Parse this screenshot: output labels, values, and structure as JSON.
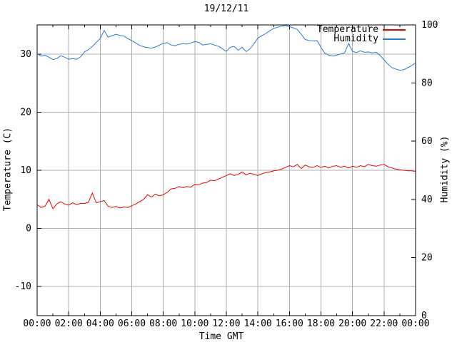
{
  "colors": {
    "background": "#ffffff",
    "axis": "#000000",
    "grid": "#adadad",
    "temperature": "#ee0000",
    "humidity": "#2878d8"
  },
  "chart_data": {
    "type": "line",
    "title": "19/12/11",
    "xlabel": "Time GMT",
    "grid": true,
    "legend_position": "top-right-inside",
    "x_axis": {
      "unit": "time GMT",
      "range_minutes": [
        0,
        1440
      ],
      "major_tick_minutes": 120,
      "minor_tick_minutes": 60,
      "tick_labels": [
        "00:00",
        "02:00",
        "04:00",
        "06:00",
        "08:00",
        "10:00",
        "12:00",
        "14:00",
        "16:00",
        "18:00",
        "20:00",
        "22:00",
        "00:00"
      ]
    },
    "y_left": {
      "label": "Temperature (C)",
      "range": [
        -15,
        35
      ],
      "ticks": [
        -10,
        0,
        10,
        20,
        30
      ]
    },
    "y_right": {
      "label": "Humidity (%)",
      "range": [
        0,
        100
      ],
      "ticks": [
        0,
        20,
        40,
        60,
        80,
        100
      ]
    },
    "series": [
      {
        "name": "Temperature",
        "axis": "left",
        "color_key": "temperature",
        "step_minutes": 15,
        "values": [
          4.1,
          3.6,
          3.8,
          5.0,
          3.4,
          4.2,
          4.6,
          4.2,
          4.0,
          4.4,
          4.1,
          4.3,
          4.3,
          4.5,
          6.1,
          4.4,
          4.6,
          4.8,
          3.8,
          3.6,
          3.8,
          3.5,
          3.7,
          3.6,
          3.9,
          4.2,
          4.6,
          5.0,
          5.8,
          5.4,
          5.9,
          5.6,
          5.8,
          6.2,
          6.8,
          6.9,
          7.2,
          7.0,
          7.2,
          7.1,
          7.6,
          7.5,
          7.8,
          7.9,
          8.3,
          8.2,
          8.5,
          8.8,
          9.1,
          9.4,
          9.1,
          9.3,
          9.7,
          9.2,
          9.5,
          9.3,
          9.1,
          9.4,
          9.6,
          9.7,
          9.9,
          10.0,
          10.2,
          10.5,
          10.8,
          10.6,
          11.0,
          10.3,
          10.9,
          10.6,
          10.5,
          10.8,
          10.5,
          10.7,
          10.4,
          10.7,
          10.8,
          10.5,
          10.7,
          10.4,
          10.7,
          10.5,
          10.8,
          10.6,
          11.0,
          10.8,
          10.7,
          10.9,
          11.0,
          10.6,
          10.4,
          10.2,
          10.1,
          10.0,
          9.9,
          9.9,
          9.8
        ]
      },
      {
        "name": "Humidity",
        "axis": "right",
        "color_key": "humidity",
        "step_minutes": 15,
        "values": [
          90.1,
          89.3,
          89.6,
          88.9,
          88.1,
          88.4,
          89.4,
          88.9,
          88.2,
          88.4,
          88.2,
          89.0,
          90.7,
          91.5,
          92.6,
          94.0,
          95.3,
          98.1,
          95.8,
          96.3,
          96.8,
          96.4,
          96.2,
          95.3,
          94.6,
          93.8,
          93.0,
          92.5,
          92.2,
          92.0,
          92.4,
          93.0,
          93.7,
          93.9,
          93.1,
          92.9,
          93.3,
          93.6,
          93.4,
          93.8,
          94.3,
          94.0,
          93.1,
          93.3,
          93.5,
          93.1,
          92.7,
          91.8,
          90.9,
          92.3,
          92.6,
          91.3,
          92.3,
          90.8,
          91.8,
          93.5,
          95.5,
          96.3,
          97.0,
          98.0,
          98.8,
          99.2,
          99.6,
          99.8,
          99.4,
          99.0,
          98.4,
          96.8,
          95.0,
          94.6,
          94.5,
          94.6,
          92.3,
          90.2,
          89.6,
          89.3,
          89.6,
          90.0,
          90.4,
          93.6,
          90.9,
          90.5,
          91.1,
          90.6,
          90.7,
          90.4,
          90.6,
          89.5,
          88.0,
          86.5,
          85.3,
          84.8,
          84.4,
          84.6,
          85.3,
          86.0,
          87.0
        ]
      }
    ]
  }
}
